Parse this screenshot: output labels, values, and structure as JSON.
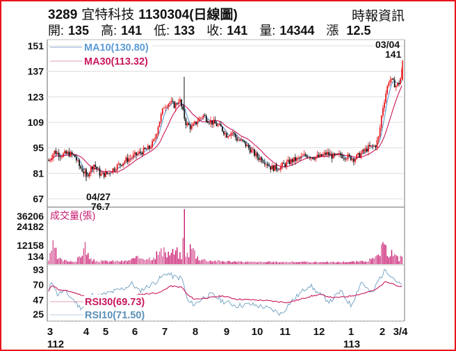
{
  "header": {
    "code": "3289",
    "name": "宜特科技",
    "date_label": "1130304(日線圖)",
    "source": "時報資訊"
  },
  "quote": {
    "open_label": "開:",
    "open": "135",
    "high_label": "高:",
    "high": "141",
    "low_label": "低:",
    "low": "133",
    "close_label": "收:",
    "close": "141",
    "volume_label": "量:",
    "volume": "14344",
    "change_label": "漲",
    "change": "12.5"
  },
  "colors": {
    "frame": "#e8141b",
    "up_candle": "#e8141b",
    "down_candle": "#111111",
    "ma10": "#5b9bd5",
    "ma30": "#c8175d",
    "volume": "#c8176e",
    "rsi10": "#7aa7c7",
    "rsi30": "#c8175d",
    "grid": "#dddddd"
  },
  "chart_data": [
    {
      "type": "candlestick",
      "title": "3289 宜特科技 1130304(日線圖)",
      "panel": "price",
      "ylim": [
        67,
        151
      ],
      "yticks": [
        151,
        137,
        123,
        109,
        95,
        81,
        67
      ],
      "grid": true,
      "legend": [
        {
          "name": "MA10",
          "label": "MA10(130.80)",
          "value": 130.8,
          "color": "#5b9bd5"
        },
        {
          "name": "MA30",
          "label": "MA30(113.32)",
          "value": 113.32,
          "color": "#c8175d"
        }
      ],
      "annotations": [
        {
          "label_date": "04/27",
          "label_value": "76.7",
          "type": "low"
        },
        {
          "label_date": "03/04",
          "label_value": "141",
          "type": "last"
        }
      ],
      "x": [
        "3",
        "4",
        "5",
        "6",
        "7",
        "8",
        "9",
        "10",
        "11",
        "12",
        "1",
        "2",
        "3/4"
      ],
      "close_approx": [
        88,
        91,
        92,
        90,
        86,
        91,
        78,
        81,
        85,
        90,
        93,
        97,
        114,
        118,
        126,
        113,
        108,
        111,
        104,
        96,
        92,
        84,
        86,
        89,
        91,
        93,
        92,
        90,
        91,
        97,
        132,
        141
      ],
      "ma10_approx": [
        88,
        90,
        90,
        88,
        85,
        83,
        81,
        85,
        90,
        97,
        112,
        118,
        112,
        108,
        101,
        94,
        86,
        87,
        90,
        91,
        91,
        90,
        92,
        125,
        131
      ],
      "ma30_approx": [
        85,
        88,
        89,
        89,
        87,
        84,
        81,
        84,
        88,
        93,
        104,
        111,
        112,
        110,
        104,
        98,
        91,
        87,
        88,
        89,
        90,
        91,
        92,
        100,
        113
      ]
    },
    {
      "type": "bar",
      "panel": "volume",
      "title": "成交量(張)",
      "yticks": [
        36206,
        24182,
        12158,
        134
      ],
      "ylim": [
        134,
        36206
      ],
      "values_approx": [
        3000,
        12000,
        17000,
        5000,
        6000,
        3000,
        2000,
        1500,
        1000,
        2000,
        15000,
        4000,
        1500,
        1500,
        1000,
        2000,
        1000,
        1200,
        5000,
        8000,
        11000,
        9000,
        36206,
        13000,
        7000,
        4000,
        3000,
        2000,
        1000,
        1200,
        1000,
        1500,
        800,
        1000,
        900,
        1500,
        2000,
        4000,
        1000,
        1200,
        9000,
        12000,
        10000,
        9000,
        8000,
        12000,
        8000,
        14344
      ]
    },
    {
      "type": "line",
      "panel": "rsi",
      "yticks": [
        93,
        70,
        47,
        25
      ],
      "ylim": [
        25,
        93
      ],
      "series": [
        {
          "name": "RSI30",
          "label": "RSI30(69.73)",
          "value": 69.73,
          "color": "#c8175d"
        },
        {
          "name": "RSI10",
          "label": "RSI10(71.50)",
          "value": 71.5,
          "color": "#7aa7c7"
        }
      ]
    }
  ],
  "price_axis": {
    "ticks": [
      "151",
      "137",
      "123",
      "109",
      "95",
      "81",
      "67"
    ]
  },
  "volume_axis": {
    "title": "成交量(張)",
    "ticks": [
      "36206",
      "24182",
      "12158",
      "134"
    ]
  },
  "rsi_axis": {
    "ticks": [
      "93",
      "70",
      "47",
      "25"
    ]
  },
  "x_axis": {
    "months": [
      "3",
      "4",
      "5",
      "6",
      "7",
      "8",
      "9",
      "10",
      "11",
      "12",
      "1",
      "2",
      "3/4"
    ],
    "years": [
      "112",
      "113"
    ]
  },
  "legends": {
    "ma10": "MA10(130.80)",
    "ma30": "MA30(113.32)",
    "rsi30": "RSI30(69.73)",
    "rsi10": "RSI10(71.50)"
  },
  "annotations": {
    "low_date": "04/27",
    "low_value": "76.7",
    "last_date": "03/04",
    "last_value": "141"
  }
}
